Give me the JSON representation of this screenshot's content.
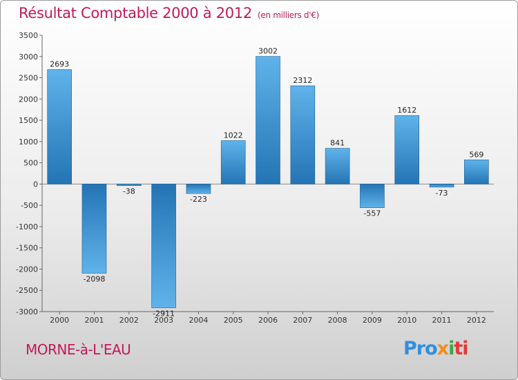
{
  "header": {
    "title": "Résultat Comptable 2000 à 2012",
    "subtitle": "(en milliers d'€)"
  },
  "footer": {
    "place": "MORNE-à-L'EAU",
    "logo": [
      "Pro",
      "x",
      "i",
      "ti"
    ]
  },
  "colors": {
    "title": "#c2185b",
    "bar_light": "#5aaee6",
    "bar_dark": "#2a7bbd"
  },
  "chart_data": {
    "type": "bar",
    "title": "Résultat Comptable 2000 à 2012",
    "subtitle": "(en milliers d'€)",
    "categories": [
      "2000",
      "2001",
      "2002",
      "2003",
      "2004",
      "2005",
      "2006",
      "2007",
      "2008",
      "2009",
      "2010",
      "2011",
      "2012"
    ],
    "values": [
      2693,
      -2098,
      -38,
      -2911,
      -223,
      1022,
      3002,
      2312,
      841,
      -557,
      1612,
      -73,
      569
    ],
    "data_labels": [
      "2693",
      "-2098",
      "-38",
      "-2911",
      "-223",
      "1022",
      "3002",
      "2312",
      "841",
      "-557",
      "1612",
      "-73",
      "569"
    ],
    "ylim": [
      -3000,
      3500
    ],
    "yticks": [
      3500,
      3000,
      2500,
      2000,
      1500,
      1000,
      500,
      0,
      -500,
      -1000,
      -1500,
      -2000,
      -2500,
      -3000
    ],
    "xlabel": "",
    "ylabel": "",
    "grid": false,
    "legend": "none"
  }
}
